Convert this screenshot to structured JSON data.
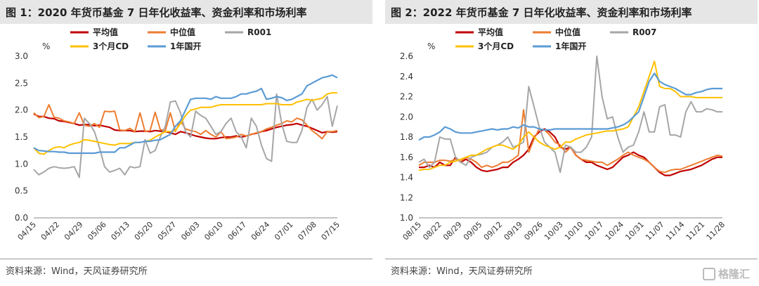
{
  "source_left": "资料来源：Wind，天风证券研究所",
  "source_right": "资料来源：Wind，天风证券研究所",
  "watermark_text": "格隆汇",
  "chart_data": [
    {
      "type": "line",
      "title": "图 1：2020 年货币基金 7 日年化收益率、资金利率和市场利率",
      "ylabel": "%",
      "ylim": [
        0.0,
        3.0
      ],
      "yticks": [
        "0.0",
        "0.5",
        "1.0",
        "1.5",
        "2.0",
        "2.5",
        "3.0"
      ],
      "ytick_values": [
        0.0,
        0.5,
        1.0,
        1.5,
        2.0,
        2.5,
        3.0
      ],
      "xlabels": [
        "04/15",
        "04/22",
        "04/29",
        "05/06",
        "05/13",
        "05/20",
        "05/27",
        "06/03",
        "06/10",
        "06/17",
        "06/24",
        "07/01",
        "07/08",
        "07/15"
      ],
      "legend_position": "top",
      "grid": false,
      "series": [
        {
          "name": "平均值",
          "color": "#c00000",
          "width": 2.2,
          "values": [
            1.93,
            1.88,
            1.88,
            1.85,
            1.84,
            1.8,
            1.79,
            1.77,
            1.75,
            1.72,
            1.73,
            1.73,
            1.71,
            1.72,
            1.7,
            1.68,
            1.63,
            1.62,
            1.62,
            1.62,
            1.6,
            1.61,
            1.61,
            1.6,
            1.62,
            1.61,
            1.6,
            1.58,
            1.55,
            1.6,
            1.58,
            1.55,
            1.52,
            1.5,
            1.48,
            1.47,
            1.47,
            1.49,
            1.5,
            1.5,
            1.52,
            1.5,
            1.52,
            1.55,
            1.57,
            1.6,
            1.62,
            1.65,
            1.68,
            1.7,
            1.72,
            1.73,
            1.75,
            1.72,
            1.7,
            1.66,
            1.62,
            1.58,
            1.6,
            1.59,
            1.6
          ]
        },
        {
          "name": "中位值",
          "color": "#ed7d31",
          "width": 2.0,
          "values": [
            1.95,
            1.86,
            1.88,
            2.1,
            1.87,
            1.85,
            1.8,
            1.78,
            1.75,
            1.95,
            1.72,
            1.7,
            1.75,
            1.68,
            1.98,
            1.97,
            1.98,
            1.63,
            1.62,
            1.66,
            1.6,
            1.95,
            1.6,
            1.62,
            1.96,
            1.64,
            1.62,
            1.95,
            1.6,
            1.8,
            1.65,
            1.62,
            1.6,
            1.55,
            1.62,
            1.55,
            1.5,
            1.6,
            1.47,
            1.48,
            1.5,
            1.55,
            1.52,
            1.55,
            1.58,
            1.6,
            1.65,
            1.68,
            1.72,
            1.75,
            1.8,
            1.78,
            1.85,
            1.82,
            1.72,
            1.62,
            1.55,
            1.47,
            1.6,
            1.6,
            1.62
          ]
        },
        {
          "name": "R001",
          "color": "#a6a6a6",
          "width": 2.0,
          "values": [
            0.9,
            0.8,
            0.85,
            0.92,
            0.95,
            0.93,
            0.92,
            0.93,
            0.95,
            0.75,
            1.85,
            1.75,
            1.6,
            1.3,
            0.95,
            0.85,
            0.88,
            0.92,
            0.8,
            0.95,
            0.93,
            0.95,
            1.45,
            1.2,
            1.25,
            1.5,
            1.7,
            2.15,
            2.17,
            1.95,
            1.6,
            1.5,
            1.98,
            1.9,
            1.85,
            1.7,
            1.55,
            1.6,
            1.75,
            1.85,
            1.6,
            1.5,
            1.3,
            1.85,
            1.7,
            1.35,
            1.1,
            1.05,
            2.3,
            1.75,
            1.42,
            1.4,
            1.4,
            1.62,
            2.05,
            2.2,
            2.0,
            2.1,
            2.25,
            1.7,
            2.08
          ]
        },
        {
          "name": "3个月CD",
          "color": "#ffc000",
          "width": 2.0,
          "values": [
            1.3,
            1.2,
            1.18,
            1.25,
            1.3,
            1.32,
            1.3,
            1.35,
            1.38,
            1.4,
            1.45,
            1.44,
            1.42,
            1.4,
            1.38,
            1.36,
            1.35,
            1.38,
            1.38,
            1.38,
            1.4,
            1.4,
            1.42,
            1.44,
            1.5,
            1.55,
            1.6,
            1.6,
            1.62,
            1.75,
            1.9,
            2.0,
            2.02,
            2.05,
            2.05,
            2.05,
            2.08,
            2.1,
            2.1,
            2.1,
            2.1,
            2.1,
            2.1,
            2.1,
            2.1,
            2.1,
            2.12,
            2.12,
            2.12,
            2.1,
            2.1,
            2.1,
            2.15,
            2.17,
            2.2,
            2.18,
            2.2,
            2.22,
            2.3,
            2.32,
            2.32
          ]
        },
        {
          "name": "1年国开",
          "color": "#5b9bd5",
          "width": 2.2,
          "values": [
            1.3,
            1.25,
            1.24,
            1.23,
            1.23,
            1.22,
            1.22,
            1.2,
            1.2,
            1.2,
            1.2,
            1.2,
            1.2,
            1.22,
            1.22,
            1.22,
            1.22,
            1.3,
            1.3,
            1.35,
            1.4,
            1.4,
            1.42,
            1.42,
            1.44,
            1.45,
            1.5,
            1.55,
            1.7,
            1.8,
            2.0,
            2.2,
            2.22,
            2.22,
            2.22,
            2.2,
            2.25,
            2.22,
            2.22,
            2.22,
            2.25,
            2.3,
            2.3,
            2.33,
            2.35,
            2.4,
            2.2,
            2.22,
            2.25,
            2.23,
            2.18,
            2.2,
            2.25,
            2.3,
            2.45,
            2.5,
            2.55,
            2.6,
            2.62,
            2.65,
            2.6
          ]
        }
      ]
    },
    {
      "type": "line",
      "title": "图 2：2022 年货币基金 7 日年化收益率、资金利率和市场利率",
      "ylabel": "%",
      "ylim": [
        1.0,
        2.6
      ],
      "yticks": [
        "1.0",
        "1.2",
        "1.4",
        "1.6",
        "1.8",
        "2.0",
        "2.2",
        "2.4",
        "2.6"
      ],
      "ytick_values": [
        1.0,
        1.2,
        1.4,
        1.6,
        1.8,
        2.0,
        2.2,
        2.4,
        2.6
      ],
      "xlabels": [
        "08/15",
        "08/22",
        "08/29",
        "09/05",
        "09/12",
        "09/19",
        "09/26",
        "10/03",
        "10/10",
        "10/17",
        "10/24",
        "10/31",
        "11/07",
        "11/14",
        "11/21",
        "11/28"
      ],
      "legend_position": "top",
      "grid": false,
      "series": [
        {
          "name": "平均值",
          "color": "#c00000",
          "width": 2.2,
          "values": [
            1.5,
            1.5,
            1.52,
            1.5,
            1.55,
            1.52,
            1.52,
            1.6,
            1.55,
            1.58,
            1.55,
            1.5,
            1.47,
            1.46,
            1.47,
            1.48,
            1.5,
            1.5,
            1.55,
            1.58,
            1.62,
            1.68,
            1.8,
            1.85,
            1.88,
            1.85,
            1.8,
            1.7,
            1.68,
            1.7,
            1.62,
            1.58,
            1.55,
            1.55,
            1.52,
            1.5,
            1.48,
            1.5,
            1.55,
            1.6,
            1.62,
            1.65,
            1.62,
            1.6,
            1.55,
            1.5,
            1.45,
            1.42,
            1.42,
            1.44,
            1.46,
            1.47,
            1.48,
            1.5,
            1.52,
            1.55,
            1.58,
            1.6,
            1.6
          ]
        },
        {
          "name": "中位值",
          "color": "#ed7d31",
          "width": 2.0,
          "values": [
            1.52,
            1.55,
            1.55,
            1.55,
            1.57,
            1.57,
            1.56,
            1.58,
            1.56,
            1.6,
            1.58,
            1.55,
            1.5,
            1.52,
            1.5,
            1.52,
            1.55,
            1.55,
            1.58,
            1.62,
            2.07,
            1.65,
            1.78,
            1.88,
            1.87,
            1.82,
            1.75,
            1.72,
            1.65,
            1.7,
            1.62,
            1.58,
            1.57,
            1.56,
            1.55,
            1.55,
            1.52,
            1.55,
            1.58,
            1.62,
            1.65,
            1.62,
            1.6,
            1.58,
            1.55,
            1.5,
            1.46,
            1.45,
            1.47,
            1.48,
            1.48,
            1.5,
            1.52,
            1.54,
            1.56,
            1.58,
            1.6,
            1.62,
            1.61
          ]
        },
        {
          "name": "R007",
          "color": "#a6a6a6",
          "width": 2.0,
          "values": [
            1.55,
            1.58,
            1.5,
            1.55,
            1.8,
            1.78,
            1.78,
            1.6,
            1.55,
            1.52,
            1.6,
            1.62,
            1.63,
            1.65,
            1.7,
            1.72,
            1.75,
            1.8,
            1.7,
            1.72,
            1.75,
            2.3,
            2.1,
            1.9,
            1.75,
            1.7,
            1.65,
            1.45,
            1.72,
            1.7,
            1.65,
            1.65,
            1.7,
            1.8,
            2.6,
            2.2,
            1.98,
            2.0,
            1.8,
            1.65,
            1.7,
            1.72,
            1.85,
            2.05,
            1.85,
            1.85,
            2.1,
            2.12,
            1.82,
            1.82,
            1.8,
            2.05,
            2.15,
            2.05,
            2.05,
            2.08,
            2.07,
            2.05,
            2.05
          ]
        },
        {
          "name": "3个月CD",
          "color": "#ffc000",
          "width": 2.0,
          "values": [
            1.47,
            1.48,
            1.48,
            1.5,
            1.52,
            1.52,
            1.55,
            1.56,
            1.58,
            1.6,
            1.62,
            1.62,
            1.65,
            1.68,
            1.7,
            1.72,
            1.72,
            1.7,
            1.68,
            1.72,
            1.8,
            1.85,
            1.8,
            1.75,
            1.72,
            1.7,
            1.68,
            1.7,
            1.75,
            1.75,
            1.78,
            1.8,
            1.82,
            1.83,
            1.84,
            1.85,
            1.86,
            1.86,
            1.87,
            1.88,
            1.9,
            2.0,
            2.1,
            2.25,
            2.4,
            2.55,
            2.3,
            2.28,
            2.28,
            2.25,
            2.2,
            2.2,
            2.2,
            2.19,
            2.19,
            2.19,
            2.19,
            2.19,
            2.19
          ]
        },
        {
          "name": "1年国开",
          "color": "#5b9bd5",
          "width": 2.2,
          "values": [
            1.77,
            1.8,
            1.8,
            1.82,
            1.85,
            1.9,
            1.88,
            1.85,
            1.84,
            1.84,
            1.84,
            1.85,
            1.86,
            1.87,
            1.88,
            1.87,
            1.88,
            1.88,
            1.9,
            1.89,
            1.92,
            1.9,
            1.9,
            1.88,
            1.87,
            1.87,
            1.88,
            1.88,
            1.88,
            1.88,
            1.88,
            1.88,
            1.88,
            1.88,
            1.88,
            1.88,
            1.88,
            1.89,
            1.9,
            1.92,
            1.95,
            2.0,
            2.05,
            2.2,
            2.35,
            2.43,
            2.35,
            2.32,
            2.3,
            2.28,
            2.25,
            2.22,
            2.22,
            2.24,
            2.25,
            2.27,
            2.28,
            2.28,
            2.28
          ]
        }
      ]
    }
  ]
}
